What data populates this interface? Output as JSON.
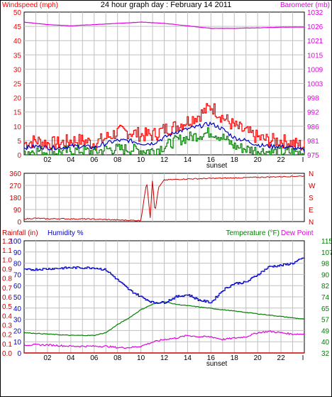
{
  "header": {
    "title": "24 hour graph day : February 14 2011",
    "left_label": "Windspeed (mph)",
    "right_label": "Barometer (mb)"
  },
  "colors": {
    "windspeed": "#ff0000",
    "windspeed_avg": "#0000cc",
    "windspeed_low": "#008000",
    "barometer": "#e000e0",
    "direction": "#cc0000",
    "humidity": "#0000cc",
    "temperature": "#008000",
    "dewpoint": "#e000e0",
    "rainfall": "#cc0000",
    "grid": "#c0c0c0"
  },
  "chart_data": [
    {
      "type": "line",
      "title": "24 hour graph day : February 14 2011",
      "ylabel": "Windspeed (mph)",
      "y2label": "Barometer (mb)",
      "ylim": [
        0,
        50
      ],
      "y2lim": [
        975,
        1032
      ],
      "yticks": [
        "0",
        "5",
        "10",
        "15",
        "20",
        "25",
        "30",
        "35",
        "40",
        "45",
        "50"
      ],
      "y2ticks": [
        "975",
        "981",
        "986",
        "992",
        "998",
        "1003",
        "1009",
        "1015",
        "1021",
        "1026",
        "1032"
      ],
      "xticks": [
        "02",
        "04",
        "06",
        "08",
        "10",
        "12",
        "14",
        "16",
        "18",
        "20",
        "22"
      ],
      "x_annotation": "sunset",
      "x_annotation_at": 16.5,
      "end_tick": "I",
      "grid": true,
      "series": [
        {
          "role": "gust",
          "x": [
            0,
            1,
            2,
            3,
            4,
            5,
            6,
            7,
            8,
            9,
            10,
            11,
            12,
            13,
            14,
            15,
            16,
            17,
            18,
            19,
            20,
            21,
            22,
            23,
            24
          ],
          "y": [
            4,
            5,
            4,
            4,
            5,
            5,
            4,
            6,
            8,
            8,
            7,
            7,
            9,
            10,
            12,
            14,
            17,
            13,
            10,
            8,
            6,
            5,
            5,
            4,
            3
          ]
        },
        {
          "role": "average",
          "x": [
            0,
            1,
            2,
            3,
            4,
            5,
            6,
            7,
            8,
            9,
            10,
            11,
            12,
            13,
            14,
            15,
            16,
            17,
            18,
            19,
            20,
            21,
            22,
            23,
            24
          ],
          "y": [
            2.5,
            3,
            2.5,
            2.5,
            3,
            3,
            2.5,
            4,
            5,
            5,
            4,
            4,
            6,
            8,
            9,
            10,
            11,
            9,
            6,
            5,
            3.5,
            3,
            3,
            2.5,
            1.5
          ]
        },
        {
          "role": "lull",
          "x": [
            0,
            1,
            2,
            3,
            4,
            5,
            6,
            7,
            8,
            9,
            10,
            11,
            12,
            13,
            14,
            15,
            16,
            17,
            18,
            19,
            20,
            21,
            22,
            23,
            24
          ],
          "y": [
            1,
            1.5,
            1,
            1,
            1.5,
            1.5,
            1,
            2,
            2,
            2,
            1.5,
            1.5,
            3,
            5,
            6,
            7,
            8,
            6,
            3,
            2,
            1.5,
            1,
            1,
            1,
            0.5
          ]
        },
        {
          "role": "barometer",
          "axis": "right",
          "x": [
            0,
            2,
            4,
            6,
            8,
            10,
            12,
            14,
            16,
            18,
            20,
            22,
            24
          ],
          "y": [
            1028,
            1027,
            1026.5,
            1027,
            1027.5,
            1028,
            1027.5,
            1026.5,
            1025.5,
            1025.5,
            1025.7,
            1026,
            1026
          ]
        }
      ]
    },
    {
      "type": "line",
      "yticks": [
        "0",
        "90",
        "180",
        "270",
        "360"
      ],
      "y2ticks": [
        "N",
        "E",
        "S",
        "W",
        "N"
      ],
      "ylim": [
        0,
        360
      ],
      "series": [
        {
          "role": "direction",
          "x": [
            0,
            1,
            2,
            3,
            4,
            5,
            6,
            7,
            8,
            9,
            10,
            10.5,
            10.8,
            11,
            11.2,
            11.5,
            12,
            14,
            16,
            18,
            20,
            22,
            24
          ],
          "y": [
            20,
            25,
            20,
            22,
            20,
            20,
            18,
            15,
            12,
            10,
            8,
            300,
            30,
            330,
            60,
            250,
            310,
            318,
            322,
            325,
            330,
            335,
            340
          ]
        }
      ]
    },
    {
      "type": "line",
      "ylabel_rain": "Rainfall (in)",
      "ylabel_hum": "Humidity %",
      "y2label": "Temperature (°F)",
      "y2label_b": "Dew Point",
      "yticks_rain": [
        "0.0",
        "0.1",
        "0.2",
        "0.3",
        "0.4",
        "0.5",
        "0.6",
        "0.7",
        "0.8",
        "0.9",
        "1.0",
        "1.1",
        "1.2"
      ],
      "yticks_hum": [
        "0",
        "10",
        "20",
        "30",
        "40",
        "50",
        "60",
        "70",
        "80",
        "90",
        "100"
      ],
      "y2ticks": [
        "32",
        "40",
        "49",
        "57",
        "65",
        "74",
        "82",
        "90",
        "98",
        "107",
        "115"
      ],
      "ylim": [
        0,
        100
      ],
      "y2lim": [
        32,
        115
      ],
      "xticks": [
        "02",
        "04",
        "06",
        "08",
        "10",
        "12",
        "14",
        "16",
        "18",
        "20",
        "22"
      ],
      "x_annotation": "sunset",
      "series": [
        {
          "role": "humidity",
          "x": [
            0,
            2,
            4,
            6,
            7,
            8,
            9,
            10,
            11,
            12,
            13,
            14,
            15,
            16,
            17,
            18,
            19,
            20,
            21,
            22,
            23,
            24
          ],
          "y": [
            74,
            75,
            76,
            76,
            74,
            65,
            56,
            50,
            45,
            45,
            50,
            52,
            47,
            45,
            56,
            62,
            63,
            70,
            77,
            78,
            80,
            85
          ]
        },
        {
          "role": "temperature",
          "axis": "right",
          "x": [
            0,
            2,
            4,
            6,
            7,
            8,
            9,
            10,
            11,
            12,
            13,
            14,
            15,
            16,
            17,
            18,
            19,
            20,
            21,
            22,
            23,
            24
          ],
          "y": [
            47,
            46,
            45,
            45,
            47,
            53,
            58,
            64,
            68,
            70,
            68,
            67,
            66,
            65,
            64,
            63,
            62,
            61,
            60,
            59,
            58,
            57
          ]
        },
        {
          "role": "dewpoint",
          "axis": "right",
          "x": [
            0,
            2,
            4,
            6,
            7,
            8,
            9,
            10,
            11,
            12,
            13,
            14,
            15,
            16,
            17,
            18,
            19,
            20,
            21,
            22,
            23,
            24
          ],
          "y": [
            38,
            38,
            37,
            37,
            37,
            36,
            36,
            37,
            40,
            42,
            43,
            45,
            44,
            44,
            42,
            43,
            44,
            47,
            48,
            47,
            46,
            46
          ]
        },
        {
          "role": "rainfall",
          "x": [
            0,
            24
          ],
          "y": [
            0,
            0
          ]
        }
      ]
    }
  ]
}
